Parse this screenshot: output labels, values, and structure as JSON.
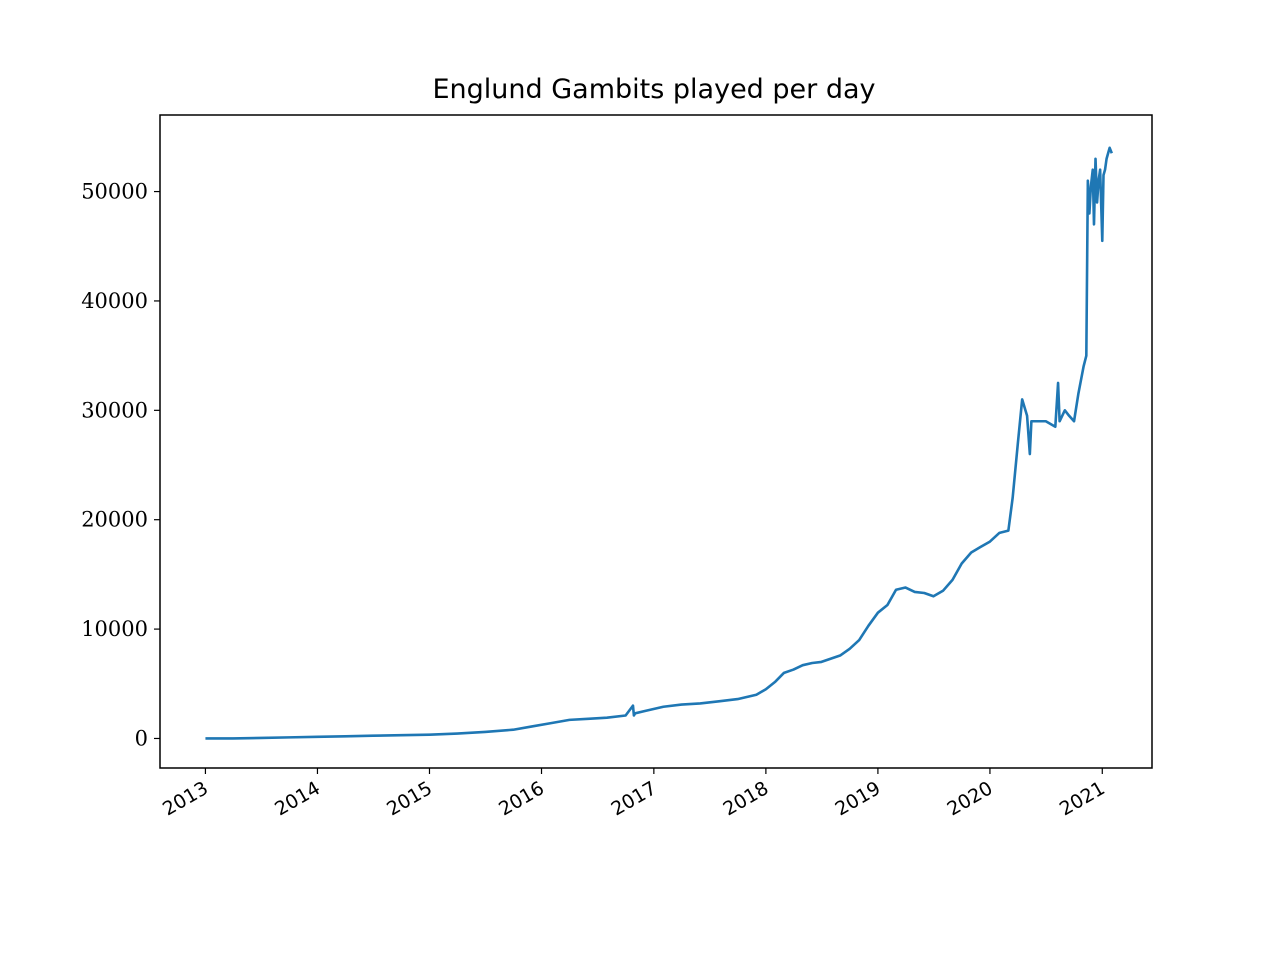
{
  "chart_data": {
    "type": "line",
    "title": "Englund Gambits played per day",
    "xlabel": "",
    "ylabel": "",
    "xlim": [
      "2012-08-06",
      "2021-06-12"
    ],
    "ylim": [
      -2700,
      57000
    ],
    "x_ticks": [
      "2013",
      "2014",
      "2015",
      "2016",
      "2017",
      "2018",
      "2019",
      "2020",
      "2021"
    ],
    "y_ticks": [
      0,
      10000,
      20000,
      30000,
      40000,
      50000
    ],
    "y_tick_labels": [
      "0",
      "10000",
      "20000",
      "30000",
      "40000",
      "50000"
    ],
    "grid": false,
    "legend": "none",
    "color": "#1f77b4",
    "series": [
      {
        "x": [
          "2013-01-01",
          "2013-04-01",
          "2013-07-01",
          "2013-10-01",
          "2014-01-01",
          "2014-04-01",
          "2014-07-01",
          "2014-10-01",
          "2015-01-01",
          "2015-04-01",
          "2015-07-01",
          "2015-10-01",
          "2015-12-01",
          "2016-02-01",
          "2016-04-01",
          "2016-06-01",
          "2016-08-01",
          "2016-10-01",
          "2016-10-25",
          "2016-10-28",
          "2016-11-01",
          "2016-12-01",
          "2017-02-01",
          "2017-04-01",
          "2017-06-01",
          "2017-08-01",
          "2017-10-01",
          "2017-12-01",
          "2018-01-01",
          "2018-02-01",
          "2018-03-01",
          "2018-04-01",
          "2018-05-01",
          "2018-06-01",
          "2018-07-01",
          "2018-08-01",
          "2018-09-01",
          "2018-10-01",
          "2018-11-01",
          "2018-12-01",
          "2019-01-01",
          "2019-02-01",
          "2019-03-01",
          "2019-04-01",
          "2019-05-01",
          "2019-06-01",
          "2019-07-01",
          "2019-08-01",
          "2019-09-01",
          "2019-10-01",
          "2019-11-01",
          "2019-12-01",
          "2020-01-01",
          "2020-02-01",
          "2020-03-01",
          "2020-03-15",
          "2020-04-01",
          "2020-04-15",
          "2020-05-01",
          "2020-05-10",
          "2020-05-15",
          "2020-06-01",
          "2020-07-01",
          "2020-08-01",
          "2020-08-10",
          "2020-08-15",
          "2020-09-01",
          "2020-09-15",
          "2020-10-01",
          "2020-10-15",
          "2020-11-01",
          "2020-11-10",
          "2020-11-15",
          "2020-11-20",
          "2020-11-25",
          "2020-12-01",
          "2020-12-05",
          "2020-12-10",
          "2020-12-15",
          "2020-12-20",
          "2020-12-25",
          "2021-01-01",
          "2021-01-05",
          "2021-01-10",
          "2021-01-15",
          "2021-01-20",
          "2021-01-25",
          "2021-02-01"
        ],
        "values": [
          0,
          0,
          50,
          100,
          150,
          200,
          250,
          300,
          350,
          450,
          600,
          800,
          1100,
          1400,
          1700,
          1800,
          1900,
          2100,
          3000,
          2100,
          2300,
          2500,
          2900,
          3100,
          3200,
          3400,
          3600,
          4000,
          4500,
          5200,
          6000,
          6300,
          6700,
          6900,
          7000,
          7300,
          7600,
          8200,
          9000,
          10300,
          11500,
          12200,
          13600,
          13800,
          13400,
          13300,
          13000,
          13500,
          14500,
          16000,
          17000,
          17500,
          18000,
          18800,
          19000,
          22000,
          27000,
          31000,
          29500,
          26000,
          29000,
          29000,
          29000,
          28500,
          32500,
          29000,
          30000,
          29500,
          29000,
          31500,
          34000,
          35000,
          51000,
          48000,
          50500,
          52000,
          47000,
          53000,
          49000,
          51000,
          52000,
          45500,
          51500,
          52000,
          53000,
          53500,
          54000,
          53500
        ]
      }
    ]
  }
}
